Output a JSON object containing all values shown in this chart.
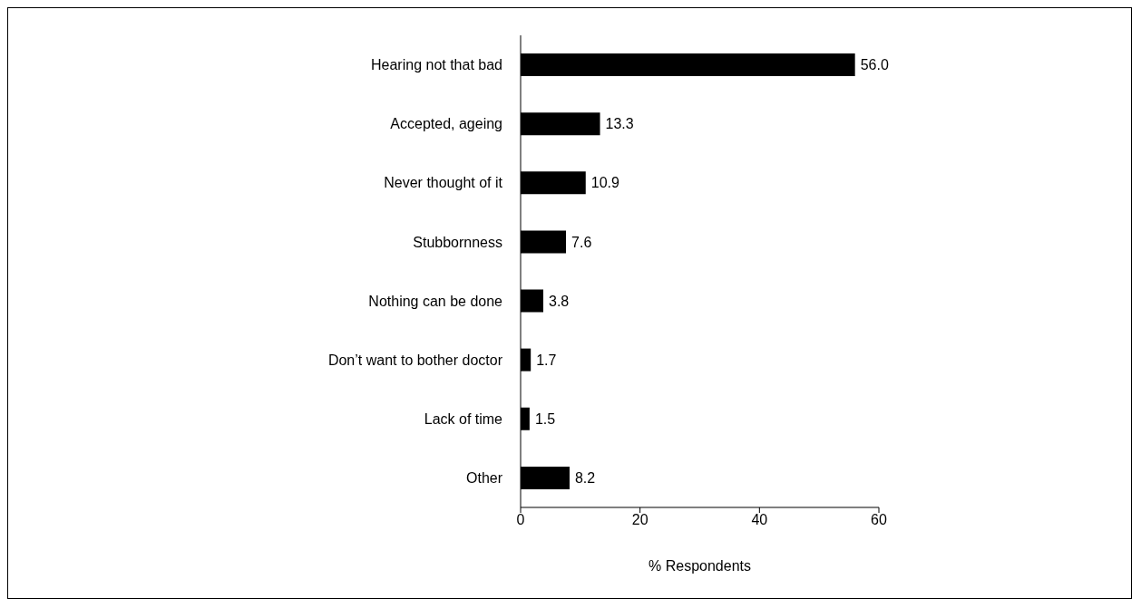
{
  "chart_data": {
    "type": "bar",
    "orientation": "horizontal",
    "xlabel": "% Respondents",
    "categories": [
      "Hearing not that bad",
      "Accepted, ageing",
      "Never thought of it",
      "Stubbornness",
      "Nothing can be done",
      "Don’t want to bother doctor",
      "Lack of time",
      "Other"
    ],
    "values": [
      56.0,
      13.3,
      10.9,
      7.6,
      3.8,
      1.7,
      1.5,
      8.2
    ],
    "value_labels": [
      "56.0",
      "13.3",
      "10.9",
      "7.6",
      "3.8",
      "1.7",
      "1.5",
      "8.2"
    ],
    "color": "#000000",
    "xlim": [
      0,
      60
    ],
    "xticks": [
      0,
      20,
      40,
      60
    ],
    "grid": false,
    "legend": false
  }
}
